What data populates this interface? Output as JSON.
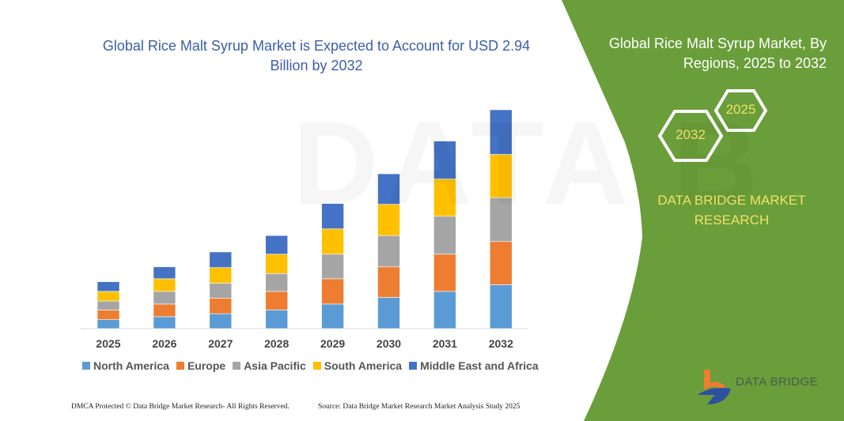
{
  "title": "Global Rice Malt Syrup Market is Expected to Account for USD 2.94 Billion by 2032",
  "right_panel": {
    "title": "Global Rice Malt Syrup Market, By Regions, 2025 to 2032",
    "hex_start": "2025",
    "hex_end": "2032",
    "brand": "DATA BRIDGE MARKET RESEARCH",
    "logo_text": "DATA BRIDGE",
    "panel_color": "#6a9e3a"
  },
  "footer": {
    "left": "DMCA Protected © Data Bridge Market Research- All Rights Reserved.",
    "right": "Source: Data Bridge Market Research Market Analysis Study 2025"
  },
  "chart_data": {
    "type": "bar",
    "stacked": true,
    "title": "Global Rice Malt Syrup Market is Expected to Account for USD 2.94 Billion by 2032",
    "unit": "USD Billion",
    "ylim": [
      0,
      2.94
    ],
    "y_axis_visible": false,
    "grid": false,
    "legend_position": "bottom",
    "categories": [
      "2025",
      "2026",
      "2027",
      "2028",
      "2029",
      "2030",
      "2031",
      "2032"
    ],
    "series": [
      {
        "name": "North America",
        "color": "#5b9bd5",
        "values": [
          0.12,
          0.16,
          0.2,
          0.25,
          0.33,
          0.42,
          0.5,
          0.59
        ]
      },
      {
        "name": "Europe",
        "color": "#ed7d31",
        "values": [
          0.13,
          0.17,
          0.21,
          0.25,
          0.34,
          0.41,
          0.5,
          0.58
        ]
      },
      {
        "name": "Asia Pacific",
        "color": "#a5a5a5",
        "values": [
          0.12,
          0.17,
          0.2,
          0.24,
          0.33,
          0.42,
          0.51,
          0.59
        ]
      },
      {
        "name": "South America",
        "color": "#ffc000",
        "values": [
          0.13,
          0.17,
          0.21,
          0.26,
          0.34,
          0.42,
          0.5,
          0.58
        ]
      },
      {
        "name": "Middle East and Africa",
        "color": "#4472c4",
        "values": [
          0.13,
          0.16,
          0.21,
          0.25,
          0.34,
          0.41,
          0.51,
          0.6
        ]
      }
    ]
  }
}
